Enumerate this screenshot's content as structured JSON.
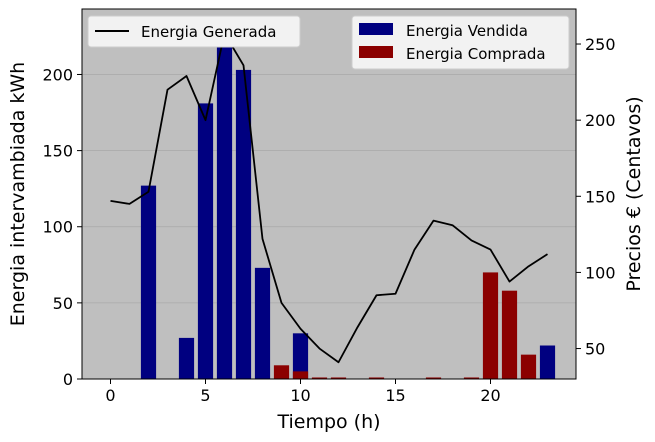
{
  "chart_data": {
    "type": "bar",
    "title": "",
    "xlabel": "Tiempo (h)",
    "ylabel": "Energia intervambiada kWh",
    "y2label": "Precios € (Centavos)",
    "xlim": [
      -1.5,
      24.5
    ],
    "ylim": [
      0,
      243
    ],
    "y2lim": [
      30,
      273
    ],
    "x_ticks": [
      0,
      5,
      10,
      15,
      20
    ],
    "y_ticks": [
      0,
      50,
      100,
      150,
      200
    ],
    "y2_ticks": [
      50,
      100,
      150,
      200,
      250
    ],
    "grid": "horizontal",
    "x": [
      0,
      1,
      2,
      3,
      4,
      5,
      6,
      7,
      8,
      9,
      10,
      11,
      12,
      13,
      14,
      15,
      16,
      17,
      18,
      19,
      20,
      21,
      22,
      23
    ],
    "series": [
      {
        "name": "Energia Vendida",
        "type": "bar",
        "axis": "left",
        "color": "#000080",
        "values": [
          0,
          0,
          127,
          0,
          27,
          181,
          228,
          203,
          73,
          0,
          30,
          0,
          0,
          0,
          0,
          0,
          0,
          0,
          0,
          0,
          0,
          0,
          0,
          22
        ]
      },
      {
        "name": "Energia Comprada",
        "type": "bar",
        "axis": "left",
        "color": "#8b0000",
        "values": [
          0,
          0,
          0,
          0,
          0,
          0,
          0,
          0,
          0,
          9,
          5,
          1,
          1,
          0,
          1,
          0,
          0,
          1,
          0,
          1,
          70,
          58,
          16,
          0
        ]
      },
      {
        "name": "Energia Generada",
        "type": "line",
        "axis": "right",
        "color": "#000000",
        "values": [
          147,
          145,
          153,
          220,
          229,
          200,
          257,
          236,
          122,
          80,
          63,
          50,
          41,
          64,
          85,
          86,
          115,
          134,
          131,
          121,
          115,
          94,
          104,
          112
        ]
      }
    ],
    "legends": [
      {
        "placement": "upper-left",
        "entries": [
          "Energia Generada"
        ]
      },
      {
        "placement": "upper-right",
        "entries": [
          "Energia Vendida",
          "Energia Comprada"
        ]
      }
    ],
    "background": "#bfbfbf"
  }
}
